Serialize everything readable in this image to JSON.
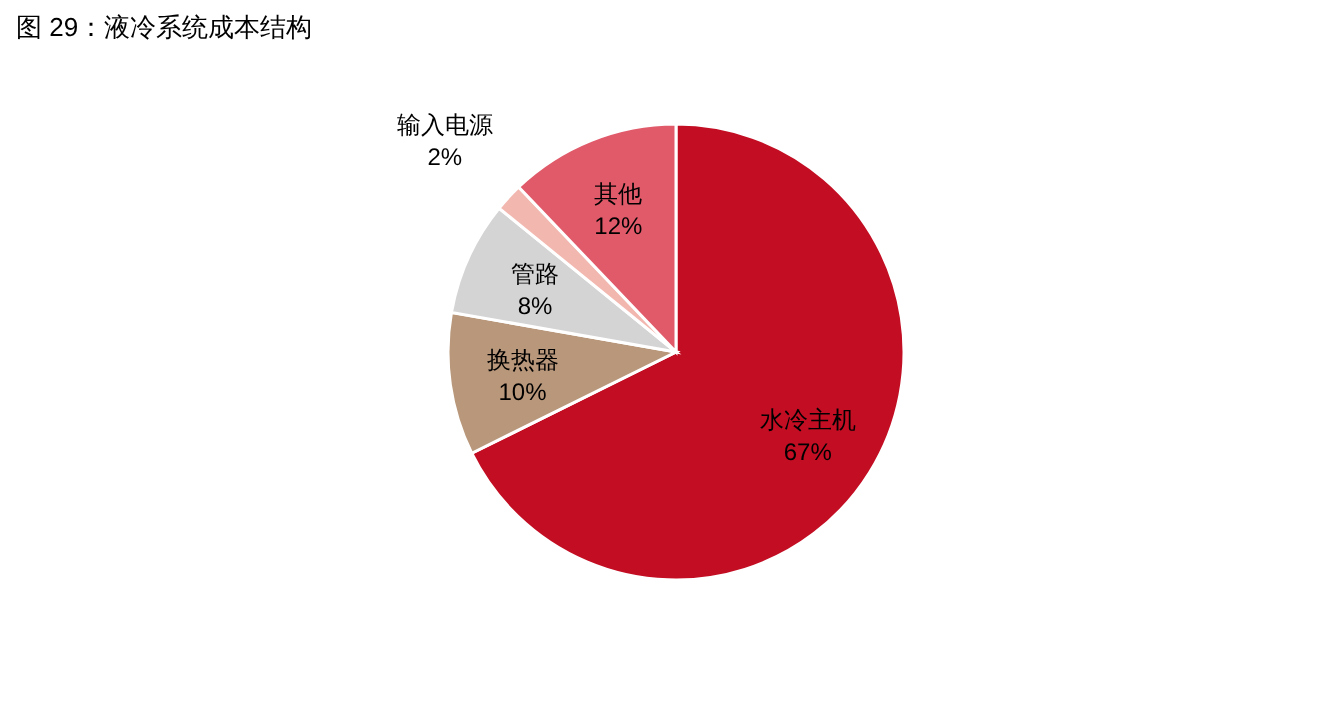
{
  "chart_data": {
    "type": "pie",
    "title": "图 29：液冷系统成本结构",
    "categories": [
      "水冷主机",
      "换热器",
      "管路",
      "输入电源",
      "其他"
    ],
    "values": [
      67,
      10,
      8,
      2,
      12
    ],
    "colors": [
      "#c30d23",
      "#b8977a",
      "#d4d4d4",
      "#f2b8b0",
      "#e05a6a"
    ],
    "value_labels": [
      "67%",
      "10%",
      "8%",
      "2%",
      "12%"
    ]
  }
}
